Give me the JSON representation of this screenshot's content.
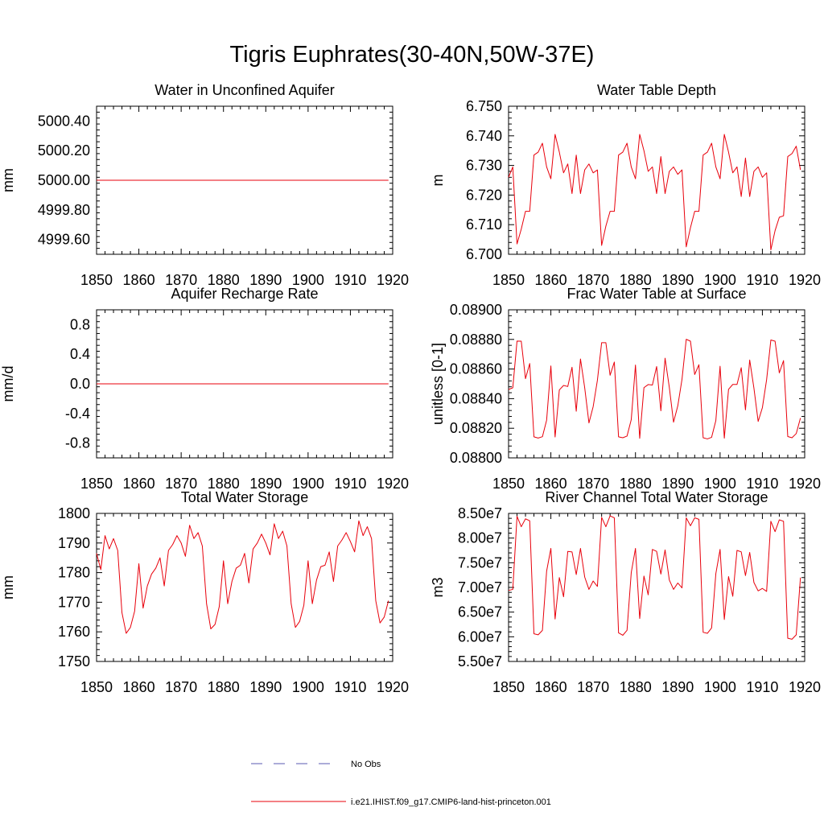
{
  "figure_title": "Tigris Euphrates(30-40N,50W-37E)",
  "chart_data": [
    {
      "type": "line",
      "title": "Water in Unconfined Aquifer",
      "xlabel": "",
      "ylabel": "mm",
      "xlim": [
        1850,
        1920
      ],
      "ylim": [
        4999.5,
        5000.5
      ],
      "xticks": [
        "1850",
        "1860",
        "1870",
        "1880",
        "1890",
        "1900",
        "1910",
        "1920"
      ],
      "yticks": [
        "4999.60",
        "4999.80",
        "5000.00",
        "5000.20",
        "5000.40"
      ],
      "x_start": 1850,
      "series": [
        {
          "values": [
            5000,
            5000,
            5000,
            5000,
            5000,
            5000,
            5000,
            5000,
            5000,
            5000,
            5000,
            5000,
            5000,
            5000,
            5000,
            5000,
            5000,
            5000,
            5000,
            5000,
            5000,
            5000,
            5000,
            5000,
            5000,
            5000,
            5000,
            5000,
            5000,
            5000,
            5000,
            5000,
            5000,
            5000,
            5000,
            5000,
            5000,
            5000,
            5000,
            5000,
            5000,
            5000,
            5000,
            5000,
            5000,
            5000,
            5000,
            5000,
            5000,
            5000,
            5000,
            5000,
            5000,
            5000,
            5000,
            5000,
            5000,
            5000,
            5000,
            5000,
            5000,
            5000,
            5000,
            5000,
            5000,
            5000,
            5000,
            5000,
            5000,
            5000
          ]
        }
      ]
    },
    {
      "type": "line",
      "title": "Water Table Depth",
      "xlabel": "",
      "ylabel": "m",
      "xlim": [
        1850,
        1920
      ],
      "ylim": [
        6.7,
        6.75
      ],
      "xticks": [
        "1850",
        "1860",
        "1870",
        "1880",
        "1890",
        "1900",
        "1910",
        "1920"
      ],
      "yticks": [
        "6.700",
        "6.710",
        "6.720",
        "6.730",
        "6.740",
        "6.750"
      ],
      "x_start": 1850,
      "series": [
        {
          "values": [
            6.726,
            6.7295,
            6.7035,
            6.7085,
            6.7145,
            6.7145,
            6.7335,
            6.7345,
            6.7375,
            6.7295,
            6.7255,
            6.7405,
            6.7345,
            6.7275,
            6.7305,
            6.7205,
            6.7335,
            6.7205,
            6.7285,
            6.7305,
            6.7275,
            6.7285,
            6.703,
            6.7095,
            6.7145,
            6.7145,
            6.7335,
            6.7345,
            6.7375,
            6.7295,
            6.7255,
            6.7405,
            6.735,
            6.728,
            6.7295,
            6.7205,
            6.733,
            6.7205,
            6.728,
            6.7295,
            6.727,
            6.7285,
            6.7025,
            6.709,
            6.7145,
            6.7145,
            6.7335,
            6.7345,
            6.7375,
            6.7295,
            6.7255,
            6.7405,
            6.7345,
            6.7275,
            6.7295,
            6.7195,
            6.7325,
            6.7195,
            6.728,
            6.7295,
            6.726,
            6.7275,
            6.7015,
            6.708,
            6.7125,
            6.713,
            6.733,
            6.734,
            6.7365,
            6.7285
          ]
        }
      ]
    },
    {
      "type": "line",
      "title": "Aquifer Recharge Rate",
      "xlabel": "",
      "ylabel": "mm/d",
      "xlim": [
        1850,
        1920
      ],
      "ylim": [
        -1.0,
        1.0
      ],
      "xticks": [
        "1850",
        "1860",
        "1870",
        "1880",
        "1890",
        "1900",
        "1910",
        "1920"
      ],
      "yticks": [
        "-0.8",
        "-0.4",
        "0.0",
        "0.4",
        "0.8"
      ],
      "x_start": 1850,
      "series": [
        {
          "values": [
            0,
            0,
            0,
            0,
            0,
            0,
            0,
            0,
            0,
            0,
            0,
            0,
            0,
            0,
            0,
            0,
            0,
            0,
            0,
            0,
            0,
            0,
            0,
            0,
            0,
            0,
            0,
            0,
            0,
            0,
            0,
            0,
            0,
            0,
            0,
            0,
            0,
            0,
            0,
            0,
            0,
            0,
            0,
            0,
            0,
            0,
            0,
            0,
            0,
            0,
            0,
            0,
            0,
            0,
            0,
            0,
            0,
            0,
            0,
            0,
            0,
            0,
            0,
            0,
            0,
            0,
            0,
            0,
            0,
            0
          ]
        }
      ]
    },
    {
      "type": "line",
      "title": "Frac Water Table at Surface",
      "xlabel": "",
      "ylabel": "unitless [0-1]",
      "xlim": [
        1850,
        1920
      ],
      "ylim": [
        0.088,
        0.089
      ],
      "xticks": [
        "1850",
        "1860",
        "1870",
        "1880",
        "1890",
        "1900",
        "1910",
        "1920"
      ],
      "yticks": [
        "0.08800",
        "0.08820",
        "0.08840",
        "0.08860",
        "0.08880",
        "0.08900"
      ],
      "x_start": 1850,
      "series": [
        {
          "values": [
            0.088462,
            0.088473,
            0.088789,
            0.088788,
            0.088535,
            0.088637,
            0.088142,
            0.088134,
            0.088143,
            0.088255,
            0.088621,
            0.088141,
            0.088459,
            0.088489,
            0.088482,
            0.088612,
            0.088315,
            0.088668,
            0.088473,
            0.088236,
            0.088346,
            0.088524,
            0.088778,
            0.088778,
            0.088558,
            0.088647,
            0.088142,
            0.088136,
            0.088147,
            0.088258,
            0.088627,
            0.088132,
            0.088474,
            0.088495,
            0.088492,
            0.088617,
            0.088318,
            0.088673,
            0.088476,
            0.088241,
            0.088351,
            0.088531,
            0.088801,
            0.088788,
            0.088563,
            0.088629,
            0.088136,
            0.088128,
            0.088139,
            0.088252,
            0.088619,
            0.088133,
            0.088463,
            0.088496,
            0.088496,
            0.088609,
            0.088324,
            0.088661,
            0.088471,
            0.088246,
            0.088339,
            0.088528,
            0.088796,
            0.088788,
            0.088574,
            0.088657,
            0.088144,
            0.088136,
            0.088164,
            0.088269
          ]
        }
      ]
    },
    {
      "type": "line",
      "title": "Total Water Storage",
      "xlabel": "",
      "ylabel": "mm",
      "xlim": [
        1850,
        1920
      ],
      "ylim": [
        1750,
        1800
      ],
      "xticks": [
        "1850",
        "1860",
        "1870",
        "1880",
        "1890",
        "1900",
        "1910",
        "1920"
      ],
      "yticks": [
        "1750",
        "1760",
        "1770",
        "1780",
        "1790",
        "1800"
      ],
      "x_start": 1850,
      "series": [
        {
          "values": [
            1786.5,
            1781,
            1792.5,
            1788,
            1791.5,
            1787.5,
            1766.5,
            1759.5,
            1761.5,
            1767,
            1783,
            1768,
            1775.5,
            1779.5,
            1781.5,
            1785,
            1775.5,
            1787.5,
            1789.5,
            1792.5,
            1790,
            1785.5,
            1796,
            1791.5,
            1793.5,
            1789,
            1769.5,
            1761,
            1762.5,
            1768.5,
            1784,
            1769.5,
            1777,
            1781.5,
            1782.5,
            1786.5,
            1776.5,
            1788,
            1790,
            1793,
            1790,
            1786,
            1796.5,
            1791.5,
            1794,
            1789,
            1769.5,
            1761.5,
            1763.5,
            1769,
            1784,
            1769.5,
            1777.5,
            1782,
            1782.5,
            1787,
            1777,
            1789,
            1791,
            1793.5,
            1790.5,
            1787,
            1797.5,
            1792.5,
            1795.5,
            1791.5,
            1770.5,
            1763,
            1765,
            1770.5
          ]
        }
      ]
    },
    {
      "type": "line",
      "title": "River Channel Total Water Storage",
      "xlabel": "",
      "ylabel": "m3",
      "xlim": [
        1850,
        1920
      ],
      "ylim": [
        55000000,
        85000000
      ],
      "xticks": [
        "1850",
        "1860",
        "1870",
        "1880",
        "1890",
        "1900",
        "1910",
        "1920"
      ],
      "yticks": [
        "5.50e7",
        "6.00e7",
        "6.50e7",
        "7.00e7",
        "7.50e7",
        "8.00e7",
        "8.50e7"
      ],
      "x_start": 1850,
      "series": [
        {
          "values": [
            69400000,
            69600000,
            84400000,
            82300000,
            83900000,
            83500000,
            60600000,
            60400000,
            61300000,
            73300000,
            77900000,
            63600000,
            72000000,
            68100000,
            77300000,
            77200000,
            72600000,
            77900000,
            72100000,
            69600000,
            71300000,
            70200000,
            84200000,
            82300000,
            84500000,
            84100000,
            60800000,
            60300000,
            61300000,
            73000000,
            77900000,
            63700000,
            72300000,
            68500000,
            77700000,
            77300000,
            72700000,
            77600000,
            71500000,
            69600000,
            70900000,
            69900000,
            84100000,
            82500000,
            84100000,
            83800000,
            60900000,
            60700000,
            61800000,
            72800000,
            77700000,
            63500000,
            72200000,
            68200000,
            77500000,
            77200000,
            72400000,
            77100000,
            71000000,
            69300000,
            69800000,
            69200000,
            83400000,
            81300000,
            83700000,
            83400000,
            59700000,
            59500000,
            60400000,
            72000000
          ]
        }
      ]
    }
  ],
  "legend": [
    {
      "label": "No Obs",
      "color": "#5a5ab0",
      "style": "dashed"
    },
    {
      "label": "i.e21.IHIST.f09_g17.CMIP6-land-hist-princeton.001",
      "color": "#e8000b",
      "style": "solid"
    }
  ],
  "colors": {
    "series": "#e8000b",
    "axis": "#000000"
  }
}
